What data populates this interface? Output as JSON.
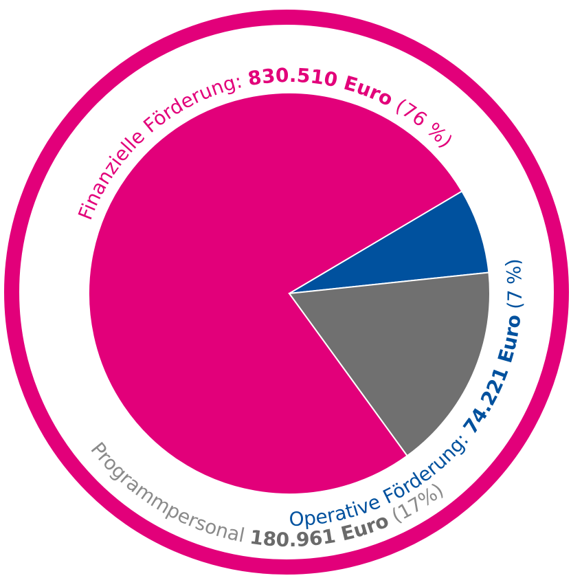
{
  "chart_data": {
    "type": "pie",
    "categories": [
      "Finanzielle Förderung:",
      "Operative Förderung:",
      "Programmpersonal"
    ],
    "values": [
      830510,
      74221,
      180961
    ],
    "value_labels": [
      "830.510 Euro",
      "74.221 Euro",
      "180.961 Euro"
    ],
    "percent_labels": [
      "(76 %)",
      "(7 %)",
      "(17%)"
    ],
    "colors": [
      "#e2007a",
      "#00519e",
      "#707070"
    ]
  }
}
